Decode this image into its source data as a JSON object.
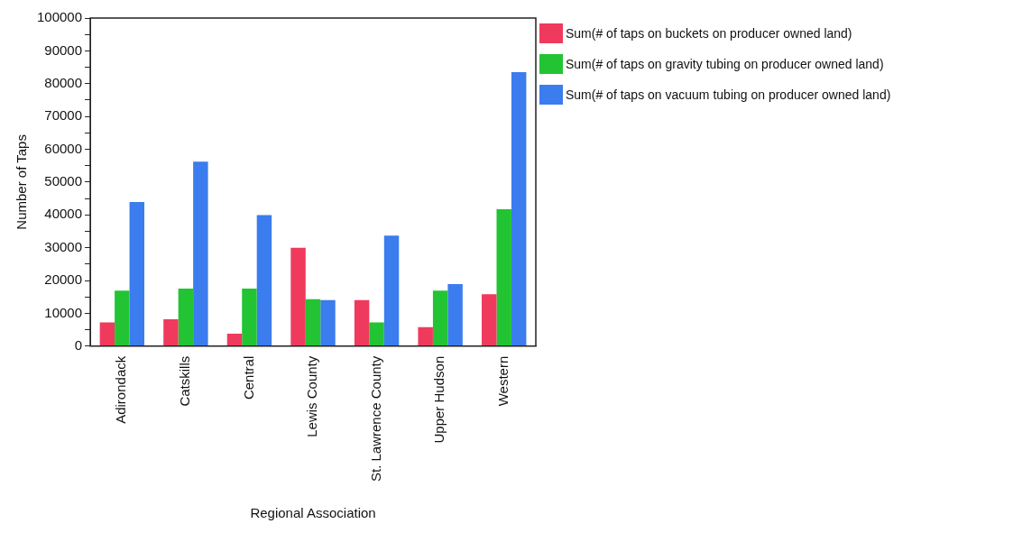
{
  "chart_data": {
    "type": "bar",
    "xlabel": "Regional Association",
    "ylabel": "Number of Taps",
    "categories": [
      "Adirondack",
      "Catskills",
      "Central",
      "Lewis County",
      "St. Lawrence County",
      "Upper Hudson",
      "Western"
    ],
    "series": [
      {
        "name": "Sum(# of taps on buckets on producer owned land)",
        "color": "#ef3a5d",
        "values": [
          7200,
          8200,
          3800,
          30000,
          14000,
          5800,
          15800
        ]
      },
      {
        "name": "Sum(# of taps on gravity tubing on producer owned land)",
        "color": "#22c433",
        "values": [
          16900,
          17500,
          17500,
          14300,
          7200,
          16900,
          41700
        ]
      },
      {
        "name": "Sum(# of taps on vacuum tubing on producer owned land)",
        "color": "#3b7cee",
        "values": [
          43900,
          56200,
          39900,
          14000,
          33700,
          18900,
          83500
        ]
      }
    ],
    "ylim": [
      0,
      100000
    ],
    "yticks": [
      0,
      {
        "value": 5000,
        "label": null
      },
      10000,
      {
        "value": 15000,
        "label": null
      },
      20000,
      {
        "value": 25000,
        "label": null
      },
      30000,
      {
        "value": 35000,
        "label": null
      },
      40000,
      {
        "value": 45000,
        "label": null
      },
      50000,
      {
        "value": 55000,
        "label": null
      },
      60000,
      {
        "value": 65000,
        "label": null
      },
      70000,
      {
        "value": 75000,
        "label": null
      },
      80000,
      {
        "value": 85000,
        "label": null
      },
      90000,
      {
        "value": 95000,
        "label": null
      },
      100000
    ],
    "grid": false,
    "legend": "top right"
  }
}
